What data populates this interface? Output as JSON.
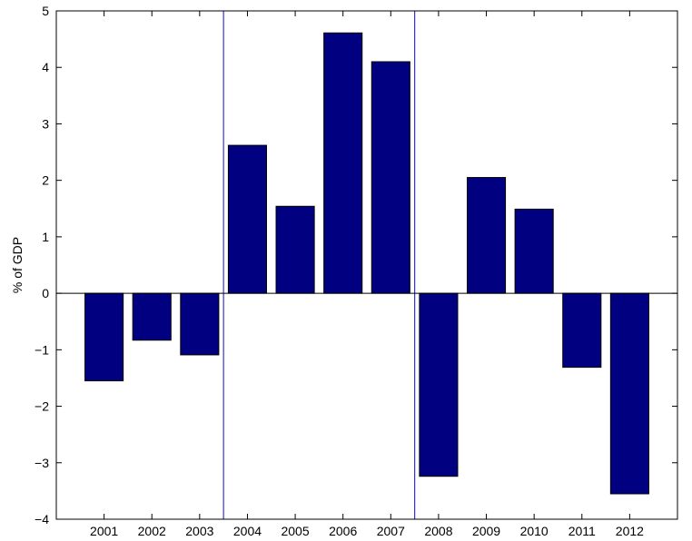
{
  "chart_data": {
    "type": "bar",
    "title": "",
    "xlabel": "",
    "ylabel": "% of GDP",
    "categories": [
      "2001",
      "2002",
      "2003",
      "2004",
      "2005",
      "2006",
      "2007",
      "2008",
      "2009",
      "2010",
      "2011",
      "2012"
    ],
    "values": [
      -1.55,
      -0.83,
      -1.09,
      2.62,
      1.54,
      4.61,
      4.1,
      -3.24,
      2.05,
      1.49,
      -1.31,
      -3.55
    ],
    "ylim": [
      -4,
      5
    ],
    "yticks": [
      -4,
      -3,
      -2,
      -1,
      0,
      1,
      2,
      3,
      4,
      5
    ],
    "ytick_labels": [
      "−4",
      "−3",
      "−2",
      "−1",
      "0",
      "1",
      "2",
      "3",
      "4",
      "5"
    ],
    "bar_color": "#000080",
    "vertical_lines_between": [
      [
        "2003",
        "2004"
      ],
      [
        "2007",
        "2008"
      ]
    ],
    "vline_color": "#3333cc",
    "grid": false
  }
}
